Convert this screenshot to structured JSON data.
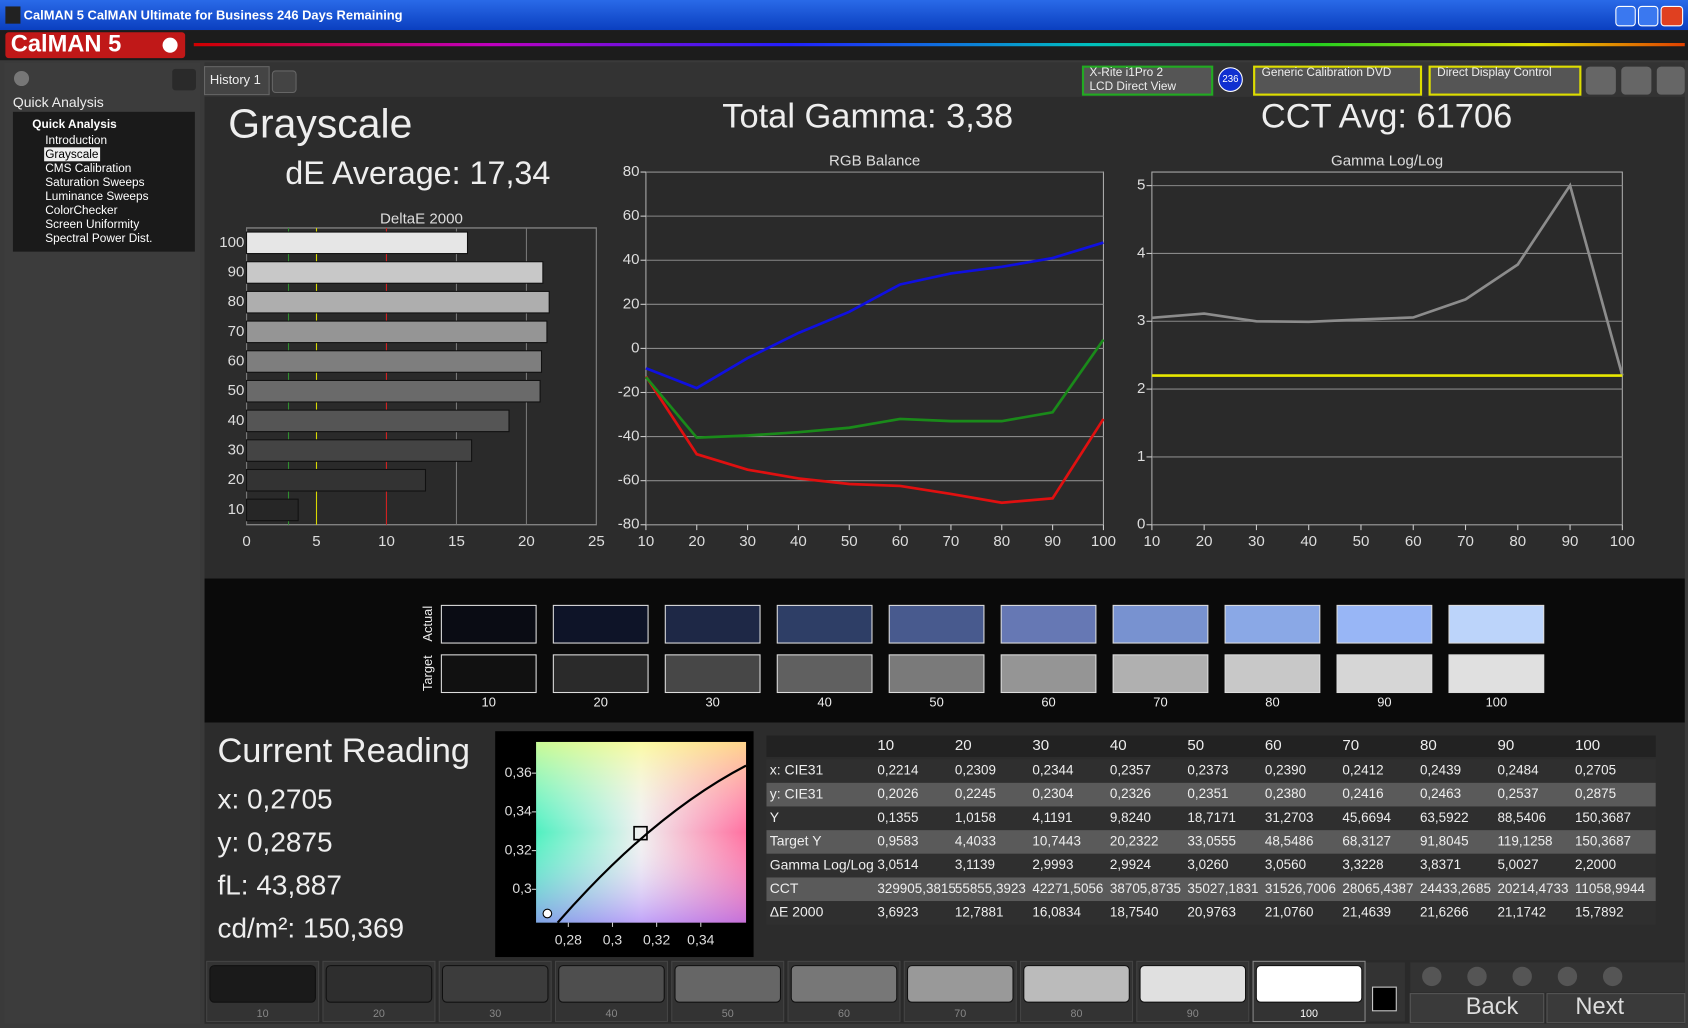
{
  "window": {
    "title": "CalMAN 5 CalMAN Ultimate for Business 246 Days Remaining",
    "logo": "CalMAN 5"
  },
  "sidebar": {
    "header": "Quick Analysis",
    "group": "Quick Analysis",
    "items": [
      "Introduction",
      "Grayscale",
      "CMS Calibration",
      "Saturation Sweeps",
      "Luminance Sweeps",
      "ColorChecker",
      "Screen Uniformity",
      "Spectral Power Dist."
    ]
  },
  "tabs": [
    "History 1"
  ],
  "toolbar": {
    "meter": [
      "X-Rite i1Pro 2",
      "LCD Direct View"
    ],
    "meter_badge": "236",
    "source": "Generic Calibration DVD",
    "display": "Direct Display Control"
  },
  "headings": {
    "title": "Grayscale",
    "de_avg": "dE Average: 17,34",
    "gamma": "Total Gamma: 3,38",
    "cct": "CCT Avg: 61706"
  },
  "chart_data": [
    {
      "type": "bar",
      "orientation": "horizontal",
      "title": "DeltaE 2000",
      "categories": [
        "10",
        "20",
        "30",
        "40",
        "50",
        "60",
        "70",
        "80",
        "90",
        "100"
      ],
      "values": [
        3.6923,
        12.7881,
        16.0834,
        18.754,
        20.9763,
        21.076,
        21.4639,
        21.6266,
        21.1742,
        15.7892
      ],
      "colors": [
        "#262626",
        "#333333",
        "#444444",
        "#555555",
        "#6a6a6a",
        "#7e7e7e",
        "#959595",
        "#aeaeae",
        "#c8c8c8",
        "#e6e6e6"
      ],
      "xlim": [
        0,
        25
      ],
      "xticks": [
        0,
        5,
        10,
        15,
        20,
        25
      ],
      "grid": true,
      "reference_lines": [
        {
          "value": 3,
          "color": "#2f8f2f"
        },
        {
          "value": 5,
          "color": "#d8d800"
        },
        {
          "value": 10,
          "color": "#d02020"
        }
      ]
    },
    {
      "type": "line",
      "title": "RGB Balance",
      "x": [
        10,
        20,
        30,
        40,
        50,
        60,
        70,
        80,
        90,
        100
      ],
      "series": [
        {
          "color": "#e01010",
          "values": [
            -12.7,
            -48,
            -55,
            -59,
            -61.5,
            -62.4,
            -66,
            -70,
            -68,
            -32
          ]
        },
        {
          "color": "#1a8a1a",
          "values": [
            -13,
            -40.5,
            -39.5,
            -38,
            -36,
            -32,
            -33,
            -33,
            -29,
            4
          ]
        },
        {
          "color": "#1010e0",
          "values": [
            -9,
            -18,
            -4.4,
            7,
            16.6,
            29,
            34,
            37,
            41,
            48
          ]
        }
      ],
      "xlim": [
        10,
        100
      ],
      "xticks": [
        10,
        20,
        30,
        40,
        50,
        60,
        70,
        80,
        90,
        100
      ],
      "ylim": [
        -80,
        80
      ],
      "yticks": [
        -80,
        -60,
        -40,
        -20,
        0,
        20,
        40,
        60,
        80
      ],
      "grid": true
    },
    {
      "type": "line",
      "title": "Gamma Log/Log",
      "x": [
        10,
        20,
        30,
        40,
        50,
        60,
        70,
        80,
        90,
        100
      ],
      "series": [
        {
          "color": "#8c8c8c",
          "values": [
            3.0514,
            3.1139,
            2.9993,
            2.9924,
            3.026,
            3.056,
            3.3228,
            3.8371,
            5.0027,
            2.2
          ]
        },
        {
          "color": "#e8e800",
          "values": [
            2.2,
            2.2,
            2.2,
            2.2,
            2.2,
            2.2,
            2.2,
            2.2,
            2.2,
            2.2
          ]
        }
      ],
      "xlim": [
        10,
        100
      ],
      "xticks": [
        10,
        20,
        30,
        40,
        50,
        60,
        70,
        80,
        90,
        100
      ],
      "ylim": [
        0,
        5.2
      ],
      "yticks": [
        0,
        1,
        2,
        3,
        4,
        5
      ],
      "grid": true
    },
    {
      "type": "scatter",
      "x": [
        0.3127,
        0.2705
      ],
      "values": [
        0.329,
        0.2875
      ],
      "markers": [
        "square",
        "circle"
      ],
      "xlim": [
        0.2654,
        0.3605
      ],
      "ylim": [
        0.2828,
        0.3761
      ],
      "xticks": [
        {
          "value": 0.28,
          "label": "0,28"
        },
        {
          "value": 0.3,
          "label": "0,3"
        },
        {
          "value": 0.32,
          "label": "0,32"
        },
        {
          "value": 0.34,
          "label": "0,34"
        }
      ],
      "yticks": [
        {
          "value": 0.3,
          "label": "0,3"
        },
        {
          "value": 0.32,
          "label": "0,32"
        },
        {
          "value": 0.34,
          "label": "0,34"
        },
        {
          "value": 0.36,
          "label": "0,36"
        }
      ]
    }
  ],
  "swatches": {
    "row_labels": [
      "Actual",
      "Target"
    ],
    "levels": [
      "10",
      "20",
      "30",
      "40",
      "50",
      "60",
      "70",
      "80",
      "90",
      "100"
    ],
    "actual_colors": [
      "#0a0c14",
      "#0e1428",
      "#1e2846",
      "#2e3e66",
      "#485a8e",
      "#6678b4",
      "#7892d0",
      "#8aa8e6",
      "#98b6f6",
      "#bcd4fa"
    ],
    "target_colors": [
      "#111111",
      "#2a2a2a",
      "#474747",
      "#606060",
      "#7a7a7a",
      "#959595",
      "#b0b0b0",
      "#c8c8c8",
      "#d6d6d6",
      "#e0e0e0"
    ]
  },
  "reading": {
    "title": "Current Reading",
    "lines": [
      "x: 0,2705",
      "y: 0,2875",
      "fL: 43,887",
      "cd/m²: 150,369"
    ]
  },
  "table": {
    "rows": [
      [
        "x: CIE31",
        "0,2214",
        "0,2309",
        "0,2344",
        "0,2357",
        "0,2373",
        "0,2390",
        "0,2412",
        "0,2439",
        "0,2484",
        "0,2705"
      ],
      [
        "y: CIE31",
        "0,2026",
        "0,2245",
        "0,2304",
        "0,2326",
        "0,2351",
        "0,2380",
        "0,2416",
        "0,2463",
        "0,2537",
        "0,2875"
      ],
      [
        "Y",
        "0,1355",
        "1,0158",
        "4,1191",
        "9,8240",
        "18,7171",
        "31,2703",
        "45,6694",
        "63,5922",
        "88,5406",
        "150,3687"
      ],
      [
        "Target Y",
        "0,9583",
        "4,4033",
        "10,7443",
        "20,2322",
        "33,0555",
        "48,5486",
        "68,3127",
        "91,8045",
        "119,1258",
        "150,3687"
      ],
      [
        "Gamma Log/Log",
        "3,0514",
        "3,1139",
        "2,9993",
        "2,9924",
        "3,0260",
        "3,0560",
        "3,3228",
        "3,8371",
        "5,0027",
        "2,2000"
      ],
      [
        "CCT",
        "329905,3815",
        "55855,3923",
        "42271,5056",
        "38705,8735",
        "35027,1831",
        "31526,7006",
        "28065,4387",
        "24433,2685",
        "20214,4733",
        "11058,9944"
      ],
      [
        "ΔE 2000",
        "3,6923",
        "12,7881",
        "16,0834",
        "18,7540",
        "20,9763",
        "21,0760",
        "21,4639",
        "21,6266",
        "21,1742",
        "15,7892"
      ]
    ]
  },
  "bottom": {
    "colors": [
      "#1a1a1a",
      "#2e2e2e",
      "#3c3c3c",
      "#4e4e4e",
      "#666666",
      "#777777",
      "#999999",
      "#bbbbbb",
      "#e0e0e0",
      "#ffffff"
    ],
    "buttons": [
      "Back",
      "Next"
    ]
  }
}
